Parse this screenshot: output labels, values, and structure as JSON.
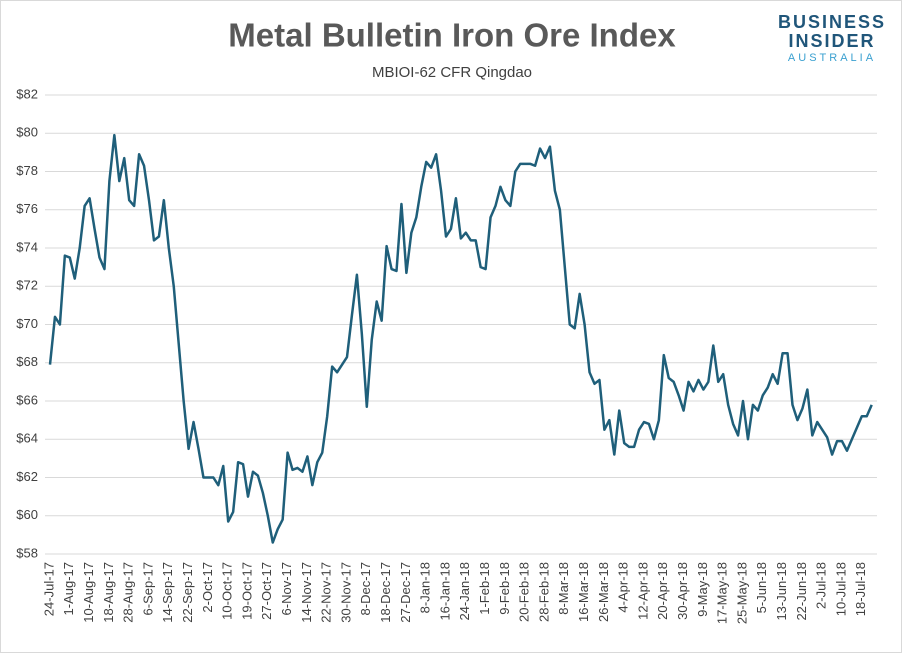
{
  "chart_data": {
    "type": "line",
    "title": "Metal Bulletin Iron Ore Index",
    "subtitle": "MBIOI-62 CFR Qingdao",
    "logo": [
      "BUSINESS",
      "INSIDER",
      "AUSTRALIA"
    ],
    "categories": [
      "24-Jul-17",
      null,
      null,
      null,
      "1-Aug-17",
      null,
      null,
      null,
      "10-Aug-17",
      null,
      null,
      null,
      "18-Aug-17",
      null,
      null,
      null,
      "28-Aug-17",
      null,
      null,
      null,
      "6-Sep-17",
      null,
      null,
      null,
      "14-Sep-17",
      null,
      null,
      null,
      "22-Sep-17",
      null,
      null,
      null,
      "2-Oct-17",
      null,
      null,
      null,
      "10-Oct-17",
      null,
      null,
      null,
      "19-Oct-17",
      null,
      null,
      null,
      "27-Oct-17",
      null,
      null,
      null,
      "6-Nov-17",
      null,
      null,
      null,
      "14-Nov-17",
      null,
      null,
      null,
      "22-Nov-17",
      null,
      null,
      null,
      "30-Nov-17",
      null,
      null,
      null,
      "8-Dec-17",
      null,
      null,
      null,
      "18-Dec-17",
      null,
      null,
      null,
      "27-Dec-17",
      null,
      null,
      null,
      "8-Jan-18",
      null,
      null,
      null,
      "16-Jan-18",
      null,
      null,
      null,
      "24-Jan-18",
      null,
      null,
      null,
      "1-Feb-18",
      null,
      null,
      null,
      "9-Feb-18",
      null,
      null,
      null,
      "20-Feb-18",
      null,
      null,
      null,
      "28-Feb-18",
      null,
      null,
      null,
      "8-Mar-18",
      null,
      null,
      null,
      "16-Mar-18",
      null,
      null,
      null,
      "26-Mar-18",
      null,
      null,
      null,
      "4-Apr-18",
      null,
      null,
      null,
      "12-Apr-18",
      null,
      null,
      null,
      "20-Apr-18",
      null,
      null,
      null,
      "30-Apr-18",
      null,
      null,
      null,
      "9-May-18",
      null,
      null,
      null,
      "17-May-18",
      null,
      null,
      null,
      "25-May-18",
      null,
      null,
      null,
      "5-Jun-18",
      null,
      null,
      null,
      "13-Jun-18",
      null,
      null,
      null,
      "22-Jun-18",
      null,
      null,
      null,
      "2-Jul-18",
      null,
      null,
      null,
      "10-Jul-18",
      null,
      null,
      null,
      "18-Jul-18",
      null,
      null
    ],
    "series": [
      {
        "name": "MBIOI-62",
        "color": "#1f5f7a",
        "values": [
          67.9,
          70.4,
          70.0,
          73.6,
          73.5,
          72.4,
          74.0,
          76.2,
          76.6,
          75.0,
          73.5,
          72.9,
          77.5,
          79.9,
          77.5,
          78.7,
          76.5,
          76.2,
          78.9,
          78.3,
          76.5,
          74.4,
          74.6,
          76.5,
          74.0,
          72.0,
          69.0,
          66.0,
          63.5,
          64.9,
          63.5,
          62.0,
          62.0,
          62.0,
          61.6,
          62.6,
          59.7,
          60.2,
          62.8,
          62.7,
          61.0,
          62.3,
          62.1,
          61.2,
          60.0,
          58.6,
          59.3,
          59.8,
          63.3,
          62.4,
          62.5,
          62.3,
          63.1,
          61.6,
          62.8,
          63.3,
          65.2,
          67.8,
          67.5,
          67.9,
          68.3,
          70.5,
          72.6,
          69.5,
          65.7,
          69.2,
          71.2,
          70.2,
          74.1,
          72.9,
          72.8,
          76.3,
          72.7,
          74.8,
          75.6,
          77.2,
          78.5,
          78.2,
          78.9,
          77.0,
          74.6,
          75.0,
          76.6,
          74.5,
          74.8,
          74.4,
          74.4,
          73.0,
          72.9,
          75.6,
          76.2,
          77.2,
          76.5,
          76.2,
          78.0,
          78.4,
          78.4,
          78.4,
          78.3,
          79.2,
          78.7,
          79.3,
          77.0,
          76.0,
          73.0,
          70.0,
          69.8,
          71.6,
          70.0,
          67.5,
          66.9,
          67.1,
          64.5,
          65.0,
          63.2,
          65.5,
          63.8,
          63.6,
          63.6,
          64.5,
          64.9,
          64.8,
          64.0,
          65.0,
          68.4,
          67.2,
          67.0,
          66.3,
          65.5,
          67.0,
          66.5,
          67.1,
          66.6,
          67.0,
          68.9,
          67.0,
          67.4,
          65.8,
          64.8,
          64.2,
          66.0,
          64.0,
          65.8,
          65.5,
          66.3,
          66.7,
          67.4,
          66.9,
          68.5,
          68.5,
          65.8,
          65.0,
          65.6,
          66.6,
          64.2,
          64.9,
          64.5,
          64.1,
          63.2,
          63.9,
          63.9,
          63.4,
          64.0,
          64.6,
          65.2,
          65.2,
          65.8
        ]
      }
    ],
    "ylim": [
      58,
      82
    ],
    "yticks": [
      {
        "value": 58,
        "label": "$58"
      },
      {
        "value": 60,
        "label": "$60"
      },
      {
        "value": 62,
        "label": "$62"
      },
      {
        "value": 64,
        "label": "$64"
      },
      {
        "value": 66,
        "label": "$66"
      },
      {
        "value": 68,
        "label": "$68"
      },
      {
        "value": 70,
        "label": "$70"
      },
      {
        "value": 72,
        "label": "$72"
      },
      {
        "value": 74,
        "label": "$74"
      },
      {
        "value": 76,
        "label": "$76"
      },
      {
        "value": 78,
        "label": "$78"
      },
      {
        "value": 80,
        "label": "$80"
      },
      {
        "value": 82,
        "label": "$82"
      }
    ],
    "grid": true
  }
}
